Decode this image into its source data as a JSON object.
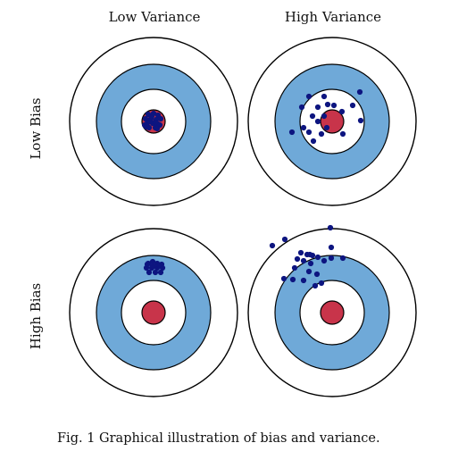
{
  "columns": [
    "Low Variance",
    "High Variance"
  ],
  "rows": [
    "Low Bias",
    "High Bias"
  ],
  "caption": "Fig. 1 Graphical illustration of bias and variance.",
  "colors": {
    "ring_outline": "#000000",
    "outer_ring": "#ffffff",
    "blue_ring": "#6fa9d8",
    "inner_ring": "#ffffff",
    "bullseye": "#c8344a",
    "dots": "#0d1580"
  },
  "panels": [
    {
      "row": "Low Bias",
      "column": "Low Variance",
      "description_hits": "clustered on bullseye"
    },
    {
      "row": "Low Bias",
      "column": "High Variance",
      "description_hits": "scattered around bullseye"
    },
    {
      "row": "High Bias",
      "column": "Low Variance",
      "description_hits": "clustered off-center"
    },
    {
      "row": "High Bias",
      "column": "High Variance",
      "description_hits": "scattered off-center"
    }
  ]
}
